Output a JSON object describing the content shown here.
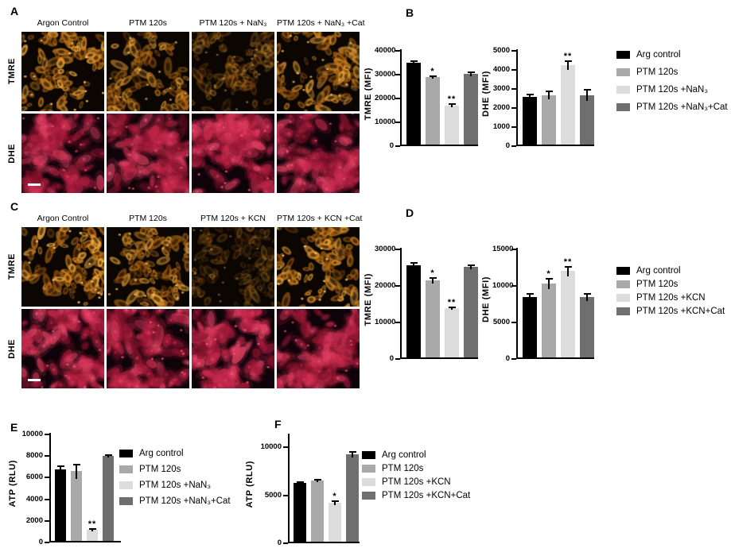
{
  "colors": {
    "bars": [
      "#000000",
      "#a9a9a9",
      "#dcdcdc",
      "#6f6f6f"
    ],
    "tmre_stain": "#d9882a",
    "dhe_stain": "#c62a4c",
    "axis": "#000000",
    "background": "#ffffff"
  },
  "figure": {
    "panels": {
      "A": {
        "letter": "A",
        "columns": [
          "Argon Control",
          "PTM 120s",
          "PTM 120s + NaN₃",
          "PTM 120s + NaN₃ +Cat"
        ],
        "rows": [
          "TMRE",
          "DHE"
        ],
        "micrographs": {
          "tmre": [
            {
              "condition": "Argon Control",
              "signal": 0.95
            },
            {
              "condition": "PTM 120s",
              "signal": 0.75
            },
            {
              "condition": "PTM 120s + NaN₃",
              "signal": 0.42
            },
            {
              "condition": "PTM 120s + NaN₃ +Cat",
              "signal": 0.85
            }
          ],
          "dhe": [
            {
              "condition": "Argon Control",
              "signal": 0.78
            },
            {
              "condition": "PTM 120s",
              "signal": 0.82
            },
            {
              "condition": "PTM 120s + NaN₃",
              "signal": 0.95
            },
            {
              "condition": "PTM 120s + NaN₃ +Cat",
              "signal": 0.75
            }
          ]
        }
      },
      "B": {
        "letter": "B"
      },
      "C": {
        "letter": "C",
        "columns": [
          "Argon Control",
          "PTM 120s",
          "PTM 120s + KCN",
          "PTM 120s + KCN +Cat"
        ],
        "rows": [
          "TMRE",
          "DHE"
        ],
        "micrographs": {
          "tmre": [
            {
              "condition": "Argon Control",
              "signal": 1.0
            },
            {
              "condition": "PTM 120s",
              "signal": 0.85
            },
            {
              "condition": "PTM 120s + KCN",
              "signal": 0.32
            },
            {
              "condition": "PTM 120s + KCN +Cat",
              "signal": 0.95
            }
          ],
          "dhe": [
            {
              "condition": "Argon Control",
              "signal": 0.85
            },
            {
              "condition": "PTM 120s",
              "signal": 0.9
            },
            {
              "condition": "PTM 120s + KCN",
              "signal": 1.0
            },
            {
              "condition": "PTM 120s + KCN +Cat",
              "signal": 0.8
            }
          ]
        }
      },
      "D": {
        "letter": "D"
      },
      "E": {
        "letter": "E"
      },
      "F": {
        "letter": "F"
      }
    }
  },
  "chart_data": [
    {
      "id": "B_TMRE",
      "type": "bar",
      "panel": "B",
      "title": "",
      "xlabel": "",
      "ylabel": "TMRE (MFI)",
      "ylim": [
        0,
        40000
      ],
      "yticks": [
        0,
        10000,
        20000,
        30000,
        40000
      ],
      "categories": [
        "Arg control",
        "PTM 120s",
        "PTM 120s +NaN₃",
        "PTM 120s +NaN₃+Cat"
      ],
      "values": [
        34200,
        28400,
        16500,
        29800
      ],
      "errors": [
        1100,
        700,
        900,
        1000
      ],
      "significance": [
        "",
        "*",
        "**",
        ""
      ]
    },
    {
      "id": "B_DHE",
      "type": "bar",
      "panel": "B",
      "title": "",
      "xlabel": "",
      "ylabel": "DHE (MFI)",
      "ylim": [
        0,
        5000
      ],
      "yticks": [
        0,
        1000,
        2000,
        3000,
        4000,
        5000
      ],
      "categories": [
        "Arg control",
        "PTM 120s",
        "PTM 120s +NaN₃",
        "PTM 120s +NaN₃+Cat"
      ],
      "values": [
        2500,
        2600,
        4150,
        2600
      ],
      "errors": [
        150,
        230,
        250,
        300
      ],
      "significance": [
        "",
        "",
        "**",
        ""
      ]
    },
    {
      "id": "D_TMRE",
      "type": "bar",
      "panel": "D",
      "title": "",
      "xlabel": "",
      "ylabel": "TMRE (MFI)",
      "ylim": [
        0,
        30000
      ],
      "yticks": [
        0,
        10000,
        20000,
        30000
      ],
      "categories": [
        "Arg control",
        "PTM 120s",
        "PTM 120s +KCN",
        "PTM 120s +KCN+Cat"
      ],
      "values": [
        25300,
        21100,
        13500,
        24800
      ],
      "errors": [
        700,
        900,
        500,
        600
      ],
      "significance": [
        "",
        "*",
        "**",
        ""
      ]
    },
    {
      "id": "D_DHE",
      "type": "bar",
      "panel": "D",
      "title": "",
      "xlabel": "",
      "ylabel": "DHE (MFI)",
      "ylim": [
        0,
        15000
      ],
      "yticks": [
        0,
        5000,
        10000,
        15000
      ],
      "categories": [
        "Arg control",
        "PTM 120s",
        "PTM 120s +KCN",
        "PTM 120s +KCN+Cat"
      ],
      "values": [
        8300,
        10100,
        11800,
        8300
      ],
      "errors": [
        550,
        800,
        750,
        550
      ],
      "significance": [
        "",
        "*",
        "**",
        ""
      ]
    },
    {
      "id": "E_ATP",
      "type": "bar",
      "panel": "E",
      "title": "",
      "xlabel": "",
      "ylabel": "ATP (RLU)",
      "ylim": [
        0,
        10000
      ],
      "yticks": [
        0,
        2000,
        4000,
        6000,
        8000,
        10000
      ],
      "categories": [
        "Arg control",
        "PTM 120s",
        "PTM 120s +NaN₃",
        "PTM 120s +NaN₃+Cat"
      ],
      "values": [
        6650,
        6450,
        1050,
        7900
      ],
      "errors": [
        350,
        700,
        150,
        80
      ],
      "significance": [
        "",
        "",
        "**",
        ""
      ]
    },
    {
      "id": "F_ATP",
      "type": "bar",
      "panel": "F",
      "title": "",
      "xlabel": "",
      "ylabel": "ATP (RLU)",
      "ylim": [
        0,
        10000
      ],
      "yticks": [
        0,
        5000,
        10000
      ],
      "categories": [
        "Arg control",
        "PTM 120s",
        "PTM 120s +KCN",
        "PTM 120s +KCN+Cat"
      ],
      "values": [
        6100,
        6350,
        4050,
        9100
      ],
      "errors": [
        100,
        150,
        250,
        300
      ],
      "significance": [
        "",
        "",
        "*",
        ""
      ]
    }
  ],
  "legends": {
    "B": {
      "entries": [
        {
          "label": "Arg control",
          "color": "#000000"
        },
        {
          "label": "PTM 120s",
          "color": "#a9a9a9"
        },
        {
          "label": "PTM 120s +NaN₃",
          "color": "#dcdcdc"
        },
        {
          "label": "PTM 120s +NaN₃+Cat",
          "color": "#6f6f6f"
        }
      ]
    },
    "D": {
      "entries": [
        {
          "label": "Arg control",
          "color": "#000000"
        },
        {
          "label": "PTM 120s",
          "color": "#a9a9a9"
        },
        {
          "label": "PTM 120s +KCN",
          "color": "#dcdcdc"
        },
        {
          "label": "PTM 120s +KCN+Cat",
          "color": "#6f6f6f"
        }
      ]
    },
    "E": {
      "entries": [
        {
          "label": "Arg control",
          "color": "#000000"
        },
        {
          "label": "PTM 120s",
          "color": "#a9a9a9"
        },
        {
          "label": "PTM 120s +NaN₃",
          "color": "#dcdcdc"
        },
        {
          "label": "PTM 120s +NaN₃+Cat",
          "color": "#6f6f6f"
        }
      ]
    },
    "F": {
      "entries": [
        {
          "label": "Arg control",
          "color": "#000000"
        },
        {
          "label": "PTM 120s",
          "color": "#a9a9a9"
        },
        {
          "label": "PTM 120s +KCN",
          "color": "#dcdcdc"
        },
        {
          "label": "PTM 120s +KCN+Cat",
          "color": "#6f6f6f"
        }
      ]
    }
  }
}
